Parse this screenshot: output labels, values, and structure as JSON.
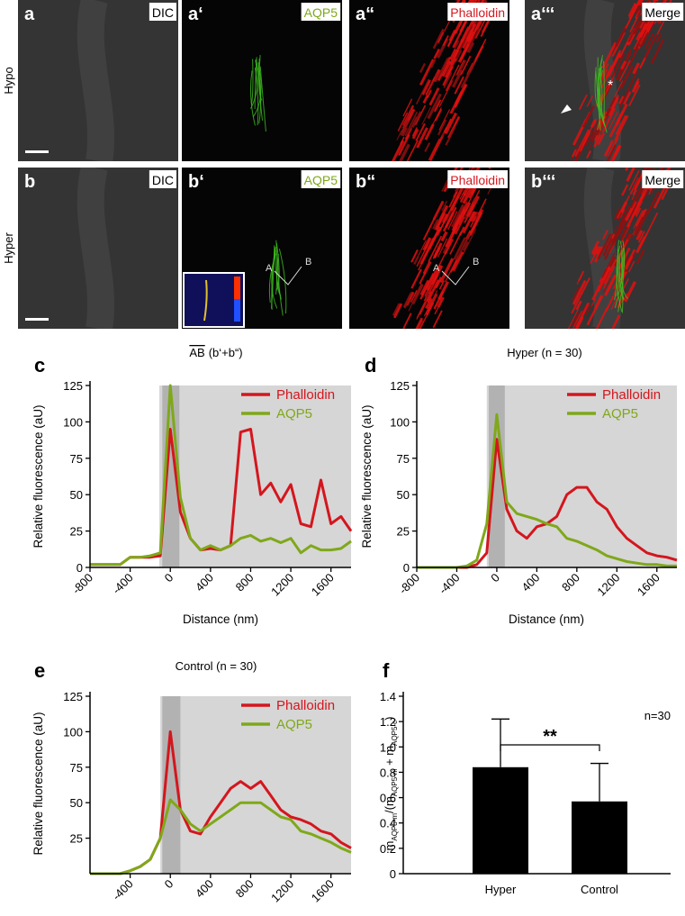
{
  "figure": {
    "row_labels": [
      "Hypo",
      "Hyper"
    ],
    "panels": [
      {
        "letter": "a",
        "label": "DIC",
        "label_color": "#000000"
      },
      {
        "letter": "a‘",
        "label": "AQP5",
        "label_color": "#7fa81a"
      },
      {
        "letter": "a“",
        "label": "Phalloidin",
        "label_color": "#d4161e"
      },
      {
        "letter": "a‘‘‘",
        "label": "Merge",
        "label_color": "#000000",
        "marks": [
          "*"
        ]
      },
      {
        "letter": "b",
        "label": "DIC",
        "label_color": "#000000"
      },
      {
        "letter": "b‘",
        "label": "AQP5",
        "label_color": "#7fa81a",
        "marks": [
          "A",
          "B"
        ]
      },
      {
        "letter": "b“",
        "label": "Phalloidin",
        "label_color": "#d4161e",
        "marks": [
          "A",
          "B"
        ]
      },
      {
        "letter": "b‘‘‘",
        "label": "Merge",
        "label_color": "#000000"
      }
    ]
  },
  "chart_data": [
    {
      "type": "line",
      "panel": "c",
      "title_overline": "AB",
      "title": "(b‘+b“)",
      "ylabel": "Relative fluorescence (aU)",
      "xlabel": "Distance (nm)",
      "x": [
        -800,
        -700,
        -600,
        -500,
        -400,
        -300,
        -200,
        -100,
        0,
        100,
        200,
        300,
        400,
        500,
        600,
        700,
        800,
        900,
        1000,
        1100,
        1200,
        1300,
        1400,
        1500,
        1600,
        1700,
        1800
      ],
      "series": [
        {
          "name": "Phalloidin",
          "color": "#d4161e",
          "values": [
            2,
            2,
            2,
            2,
            7,
            7,
            7,
            8,
            95,
            38,
            20,
            12,
            13,
            12,
            15,
            93,
            95,
            50,
            58,
            45,
            57,
            30,
            28,
            60,
            30,
            35,
            25
          ]
        },
        {
          "name": "AQP5",
          "color": "#7fa81a",
          "values": [
            2,
            2,
            2,
            2,
            7,
            7,
            8,
            10,
            125,
            48,
            20,
            12,
            15,
            12,
            15,
            20,
            22,
            18,
            20,
            17,
            20,
            10,
            15,
            12,
            12,
            13,
            18
          ]
        }
      ],
      "shaded_ranges": [
        {
          "from": -110,
          "to": 1800,
          "color": "#d6d6d6"
        },
        {
          "from": -80,
          "to": 90,
          "color": "#b2b2b2"
        }
      ],
      "xlim": [
        -800,
        1800
      ],
      "xticks": [
        -800,
        -400,
        0,
        400,
        800,
        1200,
        1600
      ],
      "ylim": [
        0,
        125
      ],
      "yticks": [
        0,
        25,
        50,
        75,
        100,
        125
      ],
      "legend": "upper right"
    },
    {
      "type": "line",
      "panel": "d",
      "title": "Hyper (n = 30)",
      "ylabel": "Relative fluorescence (aU)",
      "xlabel": "Distance (nm)",
      "x": [
        -800,
        -700,
        -600,
        -500,
        -400,
        -300,
        -200,
        -100,
        0,
        100,
        200,
        300,
        400,
        500,
        600,
        700,
        800,
        900,
        1000,
        1100,
        1200,
        1300,
        1400,
        1500,
        1600,
        1700,
        1800
      ],
      "series": [
        {
          "name": "Phalloidin",
          "color": "#d4161e",
          "values": [
            0,
            0,
            0,
            0,
            0,
            0,
            2,
            10,
            88,
            40,
            25,
            20,
            28,
            30,
            35,
            50,
            55,
            55,
            45,
            40,
            28,
            20,
            15,
            10,
            8,
            7,
            5
          ]
        },
        {
          "name": "AQP5",
          "color": "#7fa81a",
          "values": [
            0,
            0,
            0,
            0,
            0,
            1,
            5,
            30,
            105,
            45,
            37,
            35,
            33,
            30,
            28,
            20,
            18,
            15,
            12,
            8,
            6,
            4,
            3,
            2,
            2,
            1,
            1
          ]
        }
      ],
      "shaded_ranges": [
        {
          "from": -100,
          "to": 1800,
          "color": "#d6d6d6"
        },
        {
          "from": -80,
          "to": 80,
          "color": "#b2b2b2"
        }
      ],
      "xlim": [
        -800,
        1800
      ],
      "xticks": [
        -800,
        -400,
        0,
        400,
        800,
        1200,
        1600
      ],
      "ylim": [
        0,
        125
      ],
      "yticks": [
        0,
        25,
        50,
        75,
        100,
        125
      ],
      "legend": "upper right"
    },
    {
      "type": "line",
      "panel": "e",
      "title": "Control (n = 30)",
      "ylabel": "Relative fluorescence (aU)",
      "x": [
        -800,
        -700,
        -600,
        -500,
        -400,
        -300,
        -200,
        -100,
        0,
        100,
        200,
        300,
        400,
        500,
        600,
        700,
        800,
        900,
        1000,
        1100,
        1200,
        1300,
        1400,
        1500,
        1600,
        1700,
        1800
      ],
      "series": [
        {
          "name": "Phalloidin",
          "color": "#d4161e",
          "values": [
            0,
            0,
            0,
            0,
            2,
            5,
            10,
            25,
            100,
            45,
            30,
            28,
            40,
            50,
            60,
            65,
            60,
            65,
            55,
            45,
            40,
            38,
            35,
            30,
            28,
            22,
            18
          ]
        },
        {
          "name": "AQP5",
          "color": "#7fa81a",
          "values": [
            0,
            0,
            0,
            0,
            2,
            5,
            10,
            25,
            52,
            45,
            35,
            30,
            35,
            40,
            45,
            50,
            50,
            50,
            45,
            40,
            38,
            30,
            28,
            25,
            22,
            18,
            15
          ]
        }
      ],
      "shaded_ranges": [
        {
          "from": -100,
          "to": 1800,
          "color": "#d6d6d6"
        },
        {
          "from": -80,
          "to": 100,
          "color": "#b2b2b2"
        }
      ],
      "xlim": [
        -800,
        1800
      ],
      "xticks": [
        -400,
        0,
        400,
        800,
        1200,
        1600
      ],
      "ylim": [
        0,
        125
      ],
      "yticks": [
        25,
        50,
        75,
        100,
        125
      ],
      "legend": "upper right"
    },
    {
      "type": "bar",
      "panel": "f",
      "ylabel_parts": [
        "m",
        "AQP5-m",
        "/(m",
        "AQP5-m",
        " + m",
        "AQP5-c",
        ")"
      ],
      "categories": [
        "Hyper",
        "Control"
      ],
      "values": [
        0.84,
        0.57
      ],
      "errors": [
        0.38,
        0.3
      ],
      "color": "#000000",
      "ylim": [
        0,
        1.4
      ],
      "yticks": [
        0,
        0.2,
        0.4,
        0.6,
        0.8,
        {
          "value": 1,
          "label": "1.0"
        },
        1.2,
        1.4
      ],
      "significance": "**",
      "n_label": "n=30"
    }
  ]
}
